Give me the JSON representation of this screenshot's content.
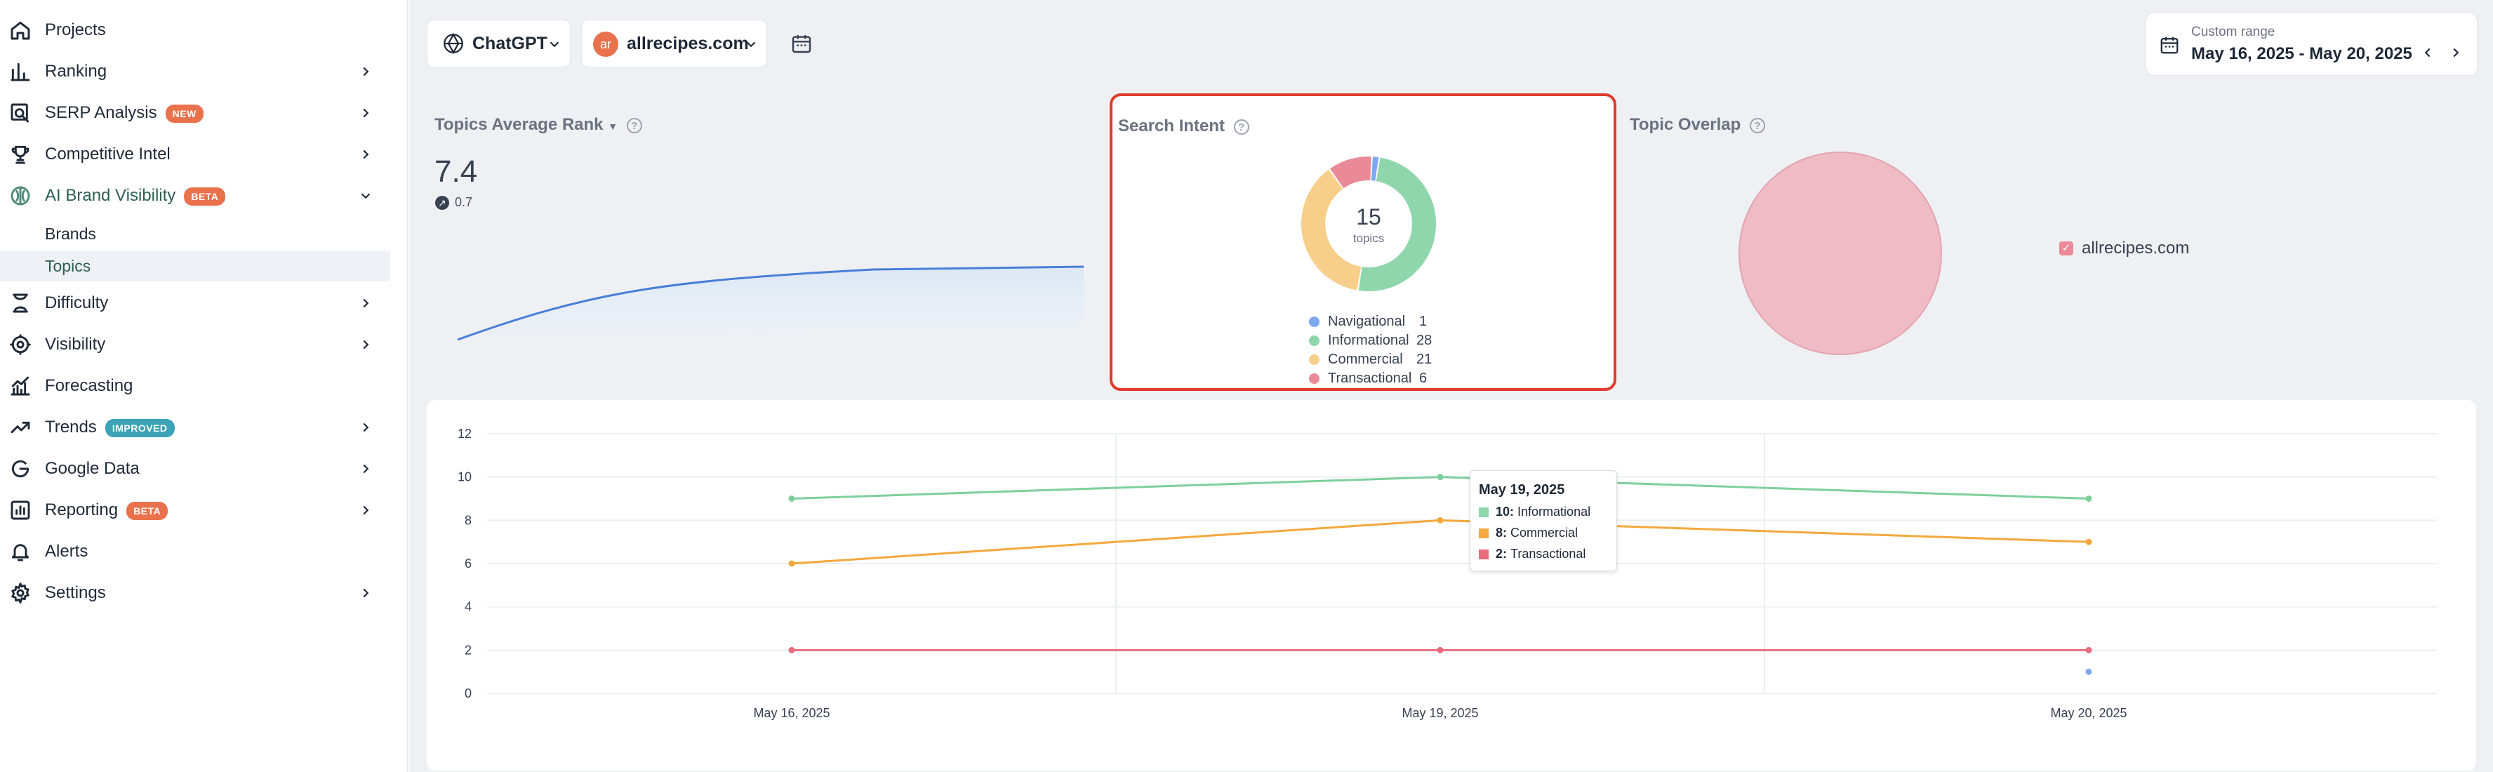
{
  "sidebar": {
    "items": [
      {
        "label": "Projects",
        "icon": "home-icon"
      },
      {
        "label": "Ranking",
        "icon": "bar-chart-icon"
      },
      {
        "label": "SERP Analysis",
        "badge": "NEW",
        "icon": "serp-search-icon"
      },
      {
        "label": "Competitive Intel",
        "icon": "trophy-icon"
      },
      {
        "label": "AI Brand Visibility",
        "badge": "BETA",
        "icon": "ai-brain-icon"
      },
      {
        "label": "Difficulty",
        "icon": "hourglass-icon"
      },
      {
        "label": "Visibility",
        "icon": "eye-gear-icon"
      },
      {
        "label": "Forecasting",
        "icon": "forecast-chart-icon"
      },
      {
        "label": "Trends",
        "badge": "IMPROVED",
        "icon": "trend-up-icon"
      },
      {
        "label": "Google Data",
        "icon": "google-icon"
      },
      {
        "label": "Reporting",
        "badge": "BETA",
        "icon": "report-icon"
      },
      {
        "label": "Alerts",
        "icon": "bell-icon"
      },
      {
        "label": "Settings",
        "icon": "gear-icon"
      }
    ],
    "subitems": [
      {
        "label": "Brands"
      },
      {
        "label": "Topics"
      }
    ]
  },
  "toolbar": {
    "engine": "ChatGPT",
    "domain": "allrecipes.com",
    "domain_avatar": "ar",
    "date_label": "Custom range",
    "date_value": "May 16, 2025 - May 20, 2025"
  },
  "rank_panel": {
    "title": "Topics Average Rank",
    "value": "7.4",
    "delta": "0.7"
  },
  "intent_panel": {
    "title": "Search Intent",
    "total": "15",
    "total_label": "topics",
    "legend": [
      {
        "name": "Navigational",
        "value": "1",
        "color": "#7ea8ef"
      },
      {
        "name": "Informational",
        "value": "28",
        "color": "#8fd6ac"
      },
      {
        "name": "Commercial",
        "value": "21",
        "color": "#f7cf8a"
      },
      {
        "name": "Transactional",
        "value": "6",
        "color": "#ea8a98"
      }
    ]
  },
  "overlap_panel": {
    "title": "Topic Overlap",
    "legend_item": "allrecipes.com",
    "circle_color": "#efbcc6"
  },
  "tooltip": {
    "date": "May 19, 2025",
    "rows": [
      {
        "value": "10:",
        "name": "Informational",
        "color": "#8fd6ac"
      },
      {
        "value": "8:",
        "name": "Commercial",
        "color": "#f4a83d"
      },
      {
        "value": "2:",
        "name": "Transactional",
        "color": "#ea6a7e"
      }
    ]
  },
  "chart_data": {
    "type": "line",
    "x": [
      "May 16, 2025",
      "May 19, 2025",
      "May 20, 2025"
    ],
    "ylim": [
      0,
      12
    ],
    "yticks": [
      0,
      2,
      4,
      6,
      8,
      10,
      12
    ],
    "series": [
      {
        "name": "Informational",
        "color": "#7fcf9c",
        "values": [
          9,
          10,
          9
        ]
      },
      {
        "name": "Commercial",
        "color": "#f4a83d",
        "values": [
          6,
          8,
          7
        ]
      },
      {
        "name": "Transactional",
        "color": "#ea6a7e",
        "values": [
          2,
          2,
          2
        ]
      },
      {
        "name": "Navigational",
        "color": "#7ea8ef",
        "values": [
          null,
          null,
          1
        ]
      }
    ]
  }
}
